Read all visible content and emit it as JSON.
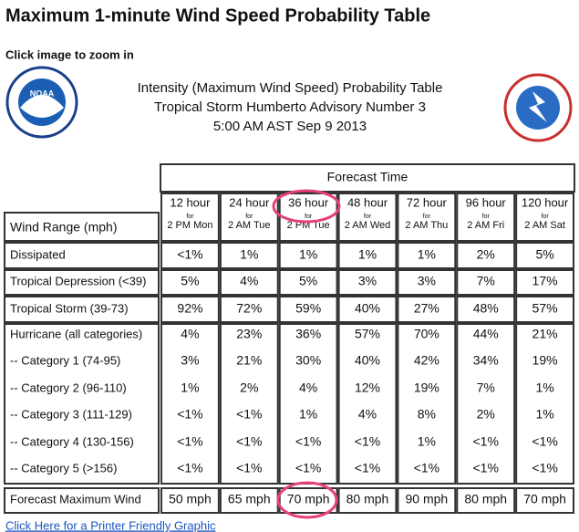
{
  "page_title": "Maximum 1-minute Wind Speed Probability Table",
  "zoom_note": "Click image to zoom in",
  "logos": {
    "noaa": "NOAA"
  },
  "header": [
    "Intensity (Maximum Wind Speed) Probability Table",
    "Tropical Storm Humberto Advisory Number 3",
    "5:00 AM AST Sep 9 2013"
  ],
  "table": {
    "group_header": "Forecast Time",
    "row_header": "Wind Range (mph)",
    "columns": [
      {
        "hour": "12 hour",
        "for": "for",
        "time": "2 PM Mon"
      },
      {
        "hour": "24 hour",
        "for": "for",
        "time": "2 AM Tue"
      },
      {
        "hour": "36 hour",
        "for": "for",
        "time": "2 PM Tue"
      },
      {
        "hour": "48 hour",
        "for": "for",
        "time": "2 AM Wed"
      },
      {
        "hour": "72 hour",
        "for": "for",
        "time": "2 AM Thu"
      },
      {
        "hour": "96 hour",
        "for": "for",
        "time": "2 AM Fri"
      },
      {
        "hour": "120 hour",
        "for": "for",
        "time": "2 AM Sat"
      }
    ],
    "rows": [
      {
        "label": "Dissipated",
        "cells": [
          "<1%",
          "1%",
          "1%",
          "1%",
          "1%",
          "2%",
          "5%"
        ]
      },
      {
        "label": "Tropical Depression (<39)",
        "cells": [
          "5%",
          "4%",
          "5%",
          "3%",
          "3%",
          "7%",
          "17%"
        ]
      },
      {
        "label": "Tropical Storm (39-73)",
        "cells": [
          "92%",
          "72%",
          "59%",
          "40%",
          "27%",
          "48%",
          "57%"
        ]
      },
      {
        "label": "Hurricane (all categories)",
        "cells": [
          "4%",
          "23%",
          "36%",
          "57%",
          "70%",
          "44%",
          "21%"
        ]
      },
      {
        "label": "-- Category 1 (74-95)",
        "cells": [
          "3%",
          "21%",
          "30%",
          "40%",
          "42%",
          "34%",
          "19%"
        ]
      },
      {
        "label": "-- Category 2 (96-110)",
        "cells": [
          "1%",
          "2%",
          "4%",
          "12%",
          "19%",
          "7%",
          "1%"
        ]
      },
      {
        "label": "-- Category 3 (111-129)",
        "cells": [
          "<1%",
          "<1%",
          "1%",
          "4%",
          "8%",
          "2%",
          "1%"
        ]
      },
      {
        "label": "-- Category 4 (130-156)",
        "cells": [
          "<1%",
          "<1%",
          "<1%",
          "<1%",
          "1%",
          "<1%",
          "<1%"
        ]
      },
      {
        "label": "-- Category 5 (>156)",
        "cells": [
          "<1%",
          "<1%",
          "<1%",
          "<1%",
          "<1%",
          "<1%",
          "<1%"
        ]
      },
      {
        "label": "Forecast Maximum Wind",
        "cells": [
          "50 mph",
          "65 mph",
          "70 mph",
          "80 mph",
          "90 mph",
          "80 mph",
          "70 mph"
        ]
      }
    ]
  },
  "footer_link": "Click Here for a Printer Friendly Graphic"
}
